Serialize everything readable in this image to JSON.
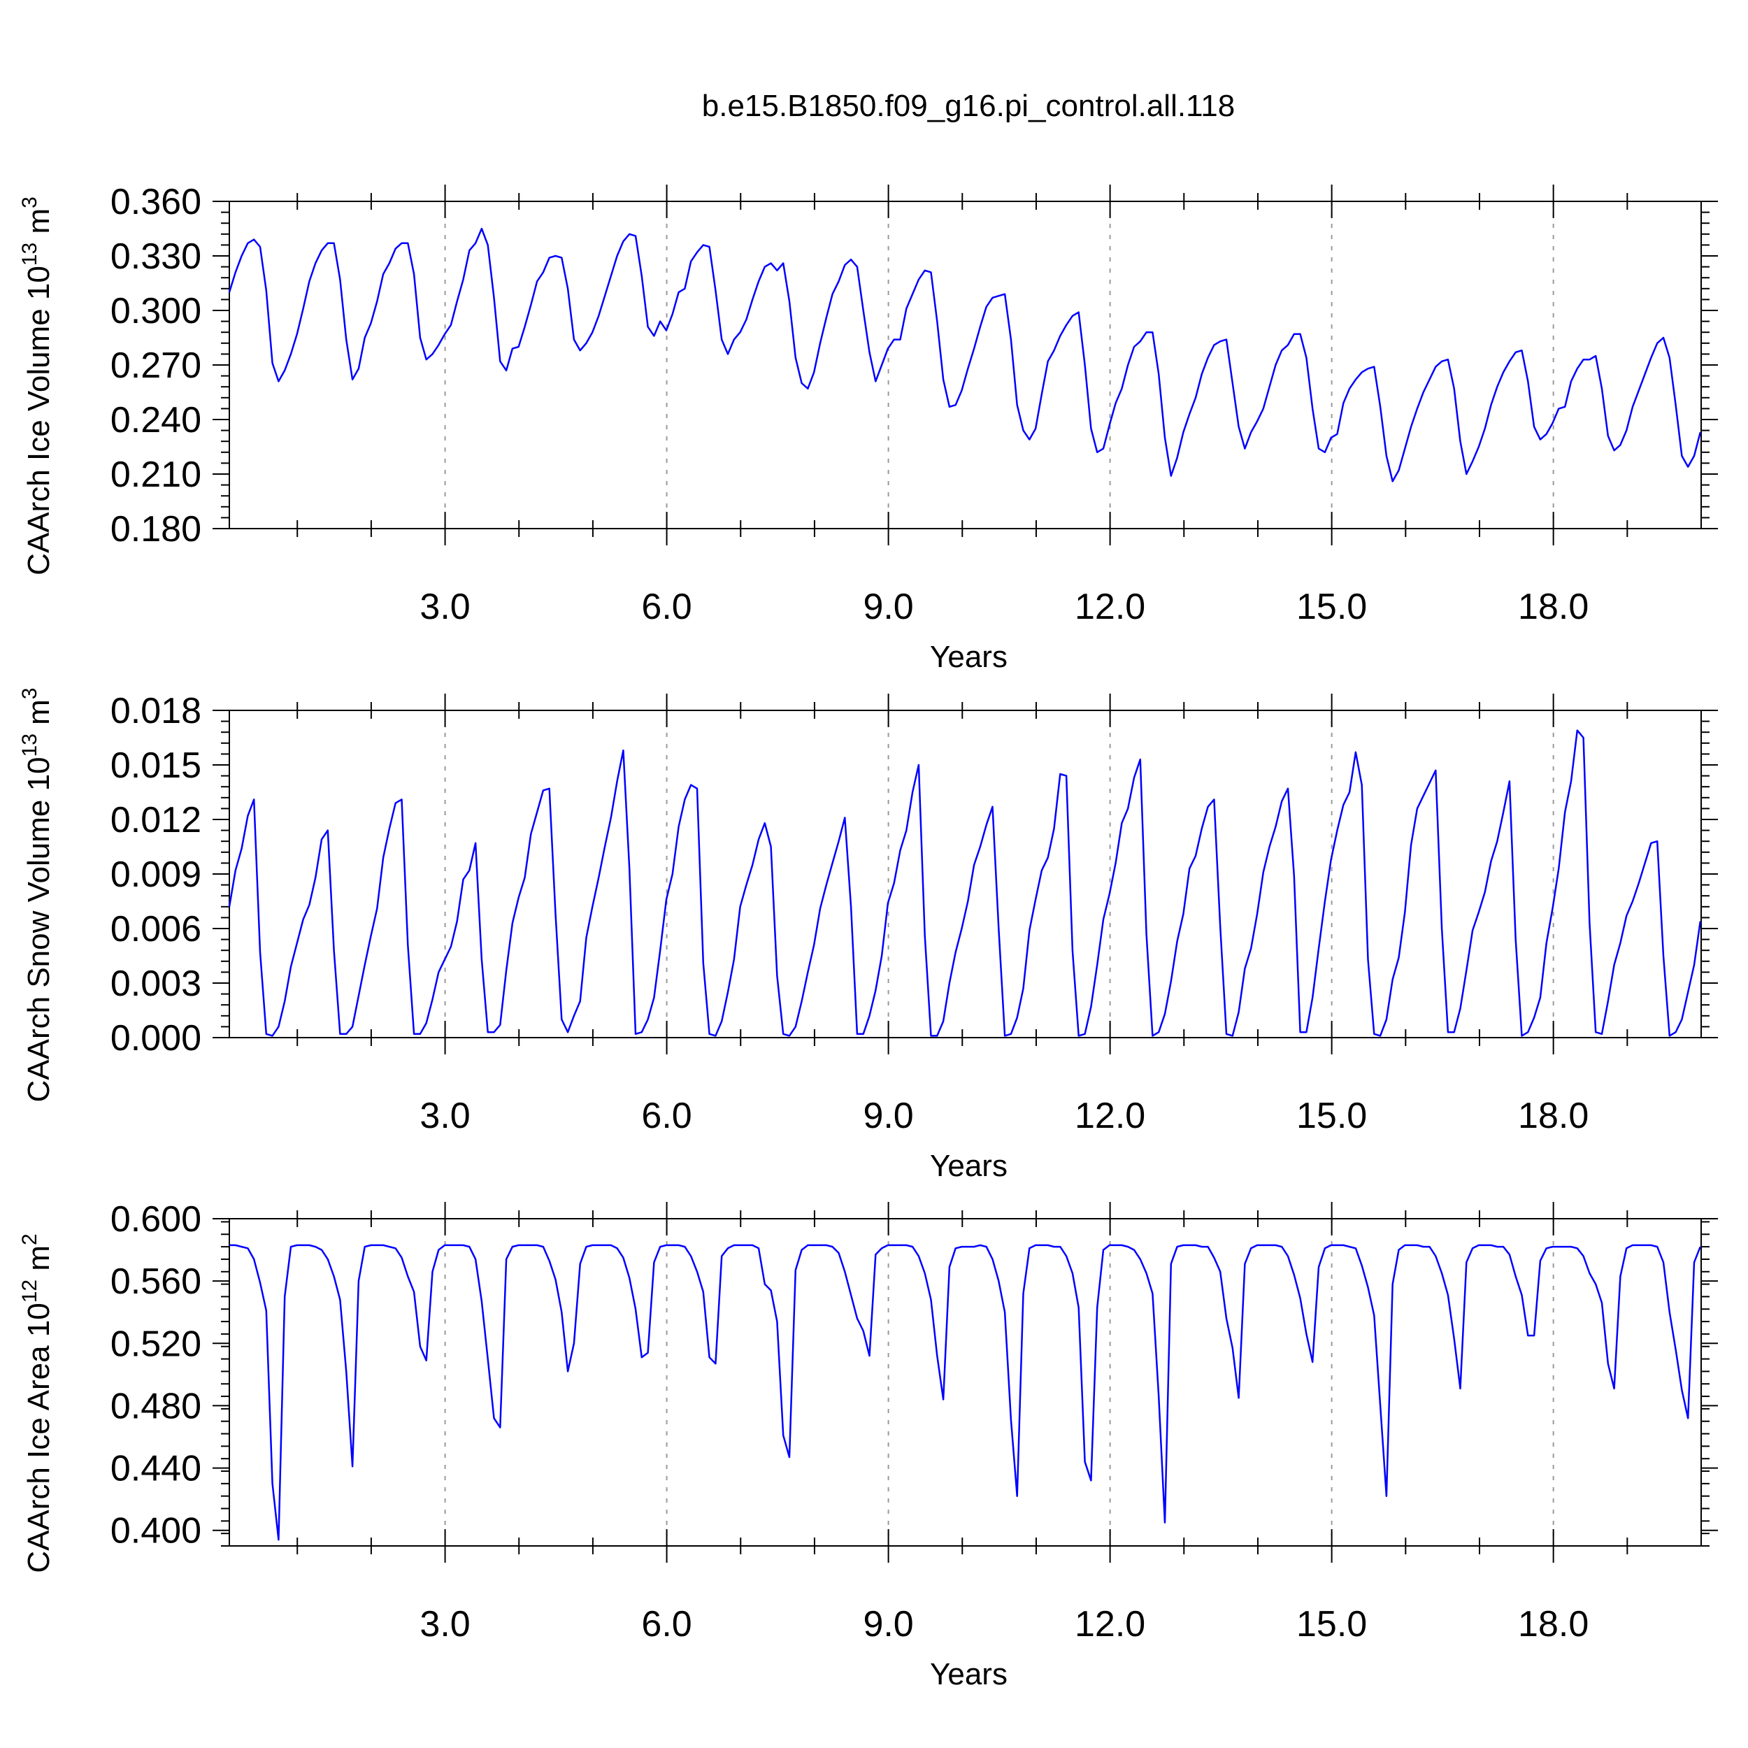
{
  "figure": {
    "title": "b.e15.B1850.f09_g16.pi_control.all.118"
  },
  "chart_data": [
    {
      "type": "line",
      "title": "b.e15.B1850.f09_g16.pi_control.all.118",
      "xlabel": "Years",
      "ylabel_main": "CAArch Ice Volume 10",
      "ylabel_sup1": "13",
      "ylabel_mid": " m",
      "ylabel_sup2": "3",
      "xlim": [
        0.08,
        20.0
      ],
      "ylim": [
        0.18,
        0.36
      ],
      "xticks": [
        3.0,
        6.0,
        9.0,
        12.0,
        15.0,
        18.0
      ],
      "xtick_labels": [
        "3.0",
        "6.0",
        "9.0",
        "12.0",
        "15.0",
        "18.0"
      ],
      "yticks": [
        0.18,
        0.21,
        0.24,
        0.27,
        0.3,
        0.33,
        0.36
      ],
      "ytick_labels": [
        "0.180",
        "0.210",
        "0.240",
        "0.270",
        "0.300",
        "0.330",
        "0.360"
      ],
      "grid": "vertical dashed at major x ticks",
      "color": "#0000ff",
      "series": [
        {
          "x_start": 0.08,
          "x_step": 0.0833,
          "values": [
            0.31,
            0.321,
            0.33,
            0.337,
            0.339,
            0.335,
            0.311,
            0.271,
            0.261,
            0.267,
            0.276,
            0.287,
            0.301,
            0.316,
            0.326,
            0.333,
            0.337,
            0.337,
            0.317,
            0.284,
            0.262,
            0.268,
            0.285,
            0.293,
            0.305,
            0.32,
            0.326,
            0.334,
            0.337,
            0.337,
            0.32,
            0.285,
            0.273,
            0.276,
            0.281,
            0.287,
            0.292,
            0.305,
            0.317,
            0.333,
            0.337,
            0.345,
            0.336,
            0.307,
            0.272,
            0.267,
            0.279,
            0.28,
            0.291,
            0.303,
            0.316,
            0.321,
            0.329,
            0.33,
            0.329,
            0.312,
            0.284,
            0.278,
            0.282,
            0.288,
            0.297,
            0.308,
            0.319,
            0.33,
            0.338,
            0.342,
            0.341,
            0.319,
            0.291,
            0.286,
            0.294,
            0.289,
            0.298,
            0.31,
            0.312,
            0.327,
            0.332,
            0.336,
            0.335,
            0.311,
            0.284,
            0.276,
            0.284,
            0.288,
            0.295,
            0.306,
            0.316,
            0.324,
            0.326,
            0.322,
            0.326,
            0.305,
            0.274,
            0.26,
            0.257,
            0.266,
            0.282,
            0.296,
            0.309,
            0.316,
            0.325,
            0.328,
            0.324,
            0.3,
            0.277,
            0.261,
            0.27,
            0.279,
            0.284,
            0.284,
            0.301,
            0.309,
            0.317,
            0.322,
            0.321,
            0.294,
            0.262,
            0.247,
            0.248,
            0.256,
            0.268,
            0.279,
            0.291,
            0.302,
            0.307,
            0.308,
            0.309,
            0.284,
            0.248,
            0.234,
            0.229,
            0.235,
            0.254,
            0.272,
            0.278,
            0.286,
            0.292,
            0.297,
            0.299,
            0.27,
            0.235,
            0.222,
            0.224,
            0.237,
            0.249,
            0.257,
            0.27,
            0.28,
            0.283,
            0.288,
            0.288,
            0.265,
            0.23,
            0.209,
            0.219,
            0.233,
            0.243,
            0.252,
            0.265,
            0.274,
            0.281,
            0.283,
            0.284,
            0.26,
            0.236,
            0.224,
            0.233,
            0.239,
            0.246,
            0.258,
            0.27,
            0.278,
            0.281,
            0.287,
            0.287,
            0.274,
            0.246,
            0.224,
            0.222,
            0.23,
            0.232,
            0.249,
            0.257,
            0.262,
            0.266,
            0.268,
            0.269,
            0.247,
            0.22,
            0.206,
            0.212,
            0.224,
            0.236,
            0.246,
            0.255,
            0.262,
            0.269,
            0.272,
            0.273,
            0.257,
            0.228,
            0.21,
            0.217,
            0.225,
            0.235,
            0.248,
            0.258,
            0.266,
            0.272,
            0.277,
            0.278,
            0.261,
            0.236,
            0.229,
            0.232,
            0.238,
            0.246,
            0.247,
            0.261,
            0.268,
            0.273,
            0.273,
            0.275,
            0.257,
            0.231,
            0.223,
            0.226,
            0.234,
            0.247,
            0.256,
            0.265,
            0.274,
            0.282,
            0.285,
            0.274,
            0.248,
            0.22,
            0.214,
            0.22,
            0.233,
            0.244
          ]
        }
      ]
    },
    {
      "type": "line",
      "xlabel": "Years",
      "ylabel_main": "CAArch Snow Volume 10",
      "ylabel_sup1": "13",
      "ylabel_mid": " m",
      "ylabel_sup2": "3",
      "xlim": [
        0.08,
        20.0
      ],
      "ylim": [
        0.0,
        0.018
      ],
      "xticks": [
        3.0,
        6.0,
        9.0,
        12.0,
        15.0,
        18.0
      ],
      "xtick_labels": [
        "3.0",
        "6.0",
        "9.0",
        "12.0",
        "15.0",
        "18.0"
      ],
      "yticks": [
        0.0,
        0.003,
        0.006,
        0.009,
        0.012,
        0.015,
        0.018
      ],
      "ytick_labels": [
        "0.000",
        "0.003",
        "0.006",
        "0.009",
        "0.012",
        "0.015",
        "0.018"
      ],
      "grid": "vertical dashed at major x ticks",
      "color": "#0000ff",
      "series": [
        {
          "x_start": 0.08,
          "x_step": 0.0833,
          "values": [
            0.0072,
            0.0092,
            0.0104,
            0.0122,
            0.0131,
            0.0047,
            0.0002,
            0.0001,
            0.0006,
            0.002,
            0.0039,
            0.0052,
            0.0065,
            0.0073,
            0.0088,
            0.0109,
            0.0114,
            0.0048,
            0.0002,
            0.0002,
            0.0006,
            0.0023,
            0.004,
            0.0056,
            0.0071,
            0.0099,
            0.0115,
            0.0129,
            0.0131,
            0.0051,
            0.0002,
            0.0002,
            0.0008,
            0.0021,
            0.0036,
            0.0043,
            0.005,
            0.0064,
            0.0087,
            0.0092,
            0.0107,
            0.0043,
            0.0003,
            0.0003,
            0.0007,
            0.0037,
            0.0063,
            0.0077,
            0.0088,
            0.0112,
            0.0124,
            0.0136,
            0.0137,
            0.0068,
            0.001,
            0.0003,
            0.0012,
            0.002,
            0.0055,
            0.0072,
            0.0088,
            0.0105,
            0.0121,
            0.0141,
            0.0158,
            0.0093,
            0.0002,
            0.0003,
            0.001,
            0.0022,
            0.0048,
            0.0076,
            0.009,
            0.0116,
            0.0131,
            0.0139,
            0.0137,
            0.0041,
            0.0002,
            0.0001,
            0.0009,
            0.0025,
            0.0043,
            0.0072,
            0.0084,
            0.0095,
            0.0109,
            0.0118,
            0.0105,
            0.0034,
            0.0002,
            0.0001,
            0.0006,
            0.002,
            0.0036,
            0.0051,
            0.0071,
            0.0084,
            0.0096,
            0.0108,
            0.0121,
            0.0072,
            0.0002,
            0.0002,
            0.0012,
            0.0026,
            0.0045,
            0.0074,
            0.0085,
            0.0103,
            0.0114,
            0.0135,
            0.015,
            0.0056,
            0.0001,
            0.0001,
            0.0009,
            0.003,
            0.0047,
            0.006,
            0.0075,
            0.0095,
            0.0105,
            0.0117,
            0.0127,
            0.006,
            0.0001,
            0.0002,
            0.0011,
            0.0027,
            0.0059,
            0.0076,
            0.0092,
            0.0099,
            0.0115,
            0.0145,
            0.0144,
            0.0048,
            0.0001,
            0.0002,
            0.0017,
            0.004,
            0.0065,
            0.0079,
            0.0096,
            0.0118,
            0.0126,
            0.0143,
            0.0153,
            0.0057,
            0.0001,
            0.0003,
            0.0013,
            0.0031,
            0.0053,
            0.0068,
            0.0093,
            0.01,
            0.0115,
            0.0127,
            0.0131,
            0.0061,
            0.0002,
            0.0001,
            0.0014,
            0.0038,
            0.0049,
            0.0068,
            0.0091,
            0.0105,
            0.0116,
            0.013,
            0.0137,
            0.0089,
            0.0003,
            0.0003,
            0.0022,
            0.0049,
            0.0075,
            0.0098,
            0.0114,
            0.0128,
            0.0135,
            0.0157,
            0.0139,
            0.0043,
            0.0002,
            0.0001,
            0.001,
            0.0032,
            0.0044,
            0.0069,
            0.0106,
            0.0126,
            0.0133,
            0.014,
            0.0147,
            0.006,
            0.0003,
            0.0003,
            0.0016,
            0.0037,
            0.0059,
            0.0069,
            0.008,
            0.0097,
            0.0108,
            0.0124,
            0.0141,
            0.0054,
            0.0001,
            0.0003,
            0.0011,
            0.0022,
            0.0052,
            0.0071,
            0.0093,
            0.0124,
            0.0141,
            0.0169,
            0.0165,
            0.0063,
            0.0003,
            0.0002,
            0.002,
            0.004,
            0.0052,
            0.0067,
            0.0075,
            0.0085,
            0.0096,
            0.0107,
            0.0108,
            0.0045,
            0.0001,
            0.0003,
            0.001,
            0.0025,
            0.004,
            0.0064
          ]
        }
      ]
    },
    {
      "type": "line",
      "xlabel": "Years",
      "ylabel_main": "CAArch Ice Area 10",
      "ylabel_sup1": "12",
      "ylabel_mid": " m",
      "ylabel_sup2": "2",
      "xlim": [
        0.08,
        20.0
      ],
      "ylim": [
        0.39,
        0.6
      ],
      "xticks": [
        3.0,
        6.0,
        9.0,
        12.0,
        15.0,
        18.0
      ],
      "xtick_labels": [
        "3.0",
        "6.0",
        "9.0",
        "12.0",
        "15.0",
        "18.0"
      ],
      "yticks": [
        0.4,
        0.44,
        0.48,
        0.52,
        0.56,
        0.6
      ],
      "ytick_labels": [
        "0.400",
        "0.440",
        "0.480",
        "0.520",
        "0.560",
        "0.600"
      ],
      "grid": "vertical dashed at major x ticks",
      "color": "#0000ff",
      "series": [
        {
          "x_start": 0.08,
          "x_step": 0.0833,
          "values": [
            0.583,
            0.583,
            0.582,
            0.581,
            0.574,
            0.559,
            0.541,
            0.43,
            0.394,
            0.55,
            0.582,
            0.583,
            0.583,
            0.583,
            0.582,
            0.58,
            0.574,
            0.563,
            0.548,
            0.502,
            0.441,
            0.56,
            0.582,
            0.583,
            0.583,
            0.583,
            0.582,
            0.581,
            0.575,
            0.563,
            0.553,
            0.518,
            0.509,
            0.566,
            0.58,
            0.583,
            0.583,
            0.583,
            0.583,
            0.582,
            0.574,
            0.547,
            0.51,
            0.472,
            0.466,
            0.574,
            0.582,
            0.583,
            0.583,
            0.583,
            0.583,
            0.582,
            0.573,
            0.561,
            0.54,
            0.502,
            0.52,
            0.571,
            0.582,
            0.583,
            0.583,
            0.583,
            0.583,
            0.581,
            0.575,
            0.562,
            0.542,
            0.511,
            0.514,
            0.572,
            0.582,
            0.583,
            0.583,
            0.583,
            0.582,
            0.576,
            0.566,
            0.553,
            0.511,
            0.507,
            0.576,
            0.581,
            0.583,
            0.583,
            0.583,
            0.583,
            0.581,
            0.558,
            0.554,
            0.534,
            0.461,
            0.447,
            0.567,
            0.58,
            0.583,
            0.583,
            0.583,
            0.583,
            0.582,
            0.578,
            0.566,
            0.551,
            0.536,
            0.528,
            0.512,
            0.577,
            0.581,
            0.583,
            0.583,
            0.583,
            0.583,
            0.582,
            0.576,
            0.565,
            0.548,
            0.512,
            0.484,
            0.569,
            0.581,
            0.582,
            0.582,
            0.582,
            0.583,
            0.582,
            0.574,
            0.56,
            0.54,
            0.471,
            0.422,
            0.552,
            0.581,
            0.583,
            0.583,
            0.583,
            0.582,
            0.582,
            0.576,
            0.565,
            0.543,
            0.444,
            0.432,
            0.543,
            0.58,
            0.583,
            0.583,
            0.583,
            0.582,
            0.58,
            0.574,
            0.565,
            0.552,
            0.486,
            0.405,
            0.571,
            0.582,
            0.583,
            0.583,
            0.583,
            0.582,
            0.582,
            0.575,
            0.566,
            0.536,
            0.517,
            0.485,
            0.571,
            0.581,
            0.583,
            0.583,
            0.583,
            0.583,
            0.582,
            0.576,
            0.564,
            0.549,
            0.526,
            0.508,
            0.569,
            0.581,
            0.583,
            0.583,
            0.583,
            0.582,
            0.581,
            0.57,
            0.556,
            0.538,
            0.48,
            0.422,
            0.558,
            0.58,
            0.583,
            0.583,
            0.583,
            0.582,
            0.582,
            0.576,
            0.565,
            0.551,
            0.523,
            0.491,
            0.572,
            0.581,
            0.583,
            0.583,
            0.583,
            0.582,
            0.582,
            0.577,
            0.563,
            0.551,
            0.525,
            0.525,
            0.573,
            0.581,
            0.582,
            0.582,
            0.582,
            0.582,
            0.581,
            0.576,
            0.565,
            0.558,
            0.546,
            0.507,
            0.491,
            0.563,
            0.581,
            0.583,
            0.583,
            0.583,
            0.583,
            0.582,
            0.572,
            0.54,
            0.516,
            0.49,
            0.472,
            0.572,
            0.582,
            0.583
          ]
        }
      ]
    }
  ]
}
